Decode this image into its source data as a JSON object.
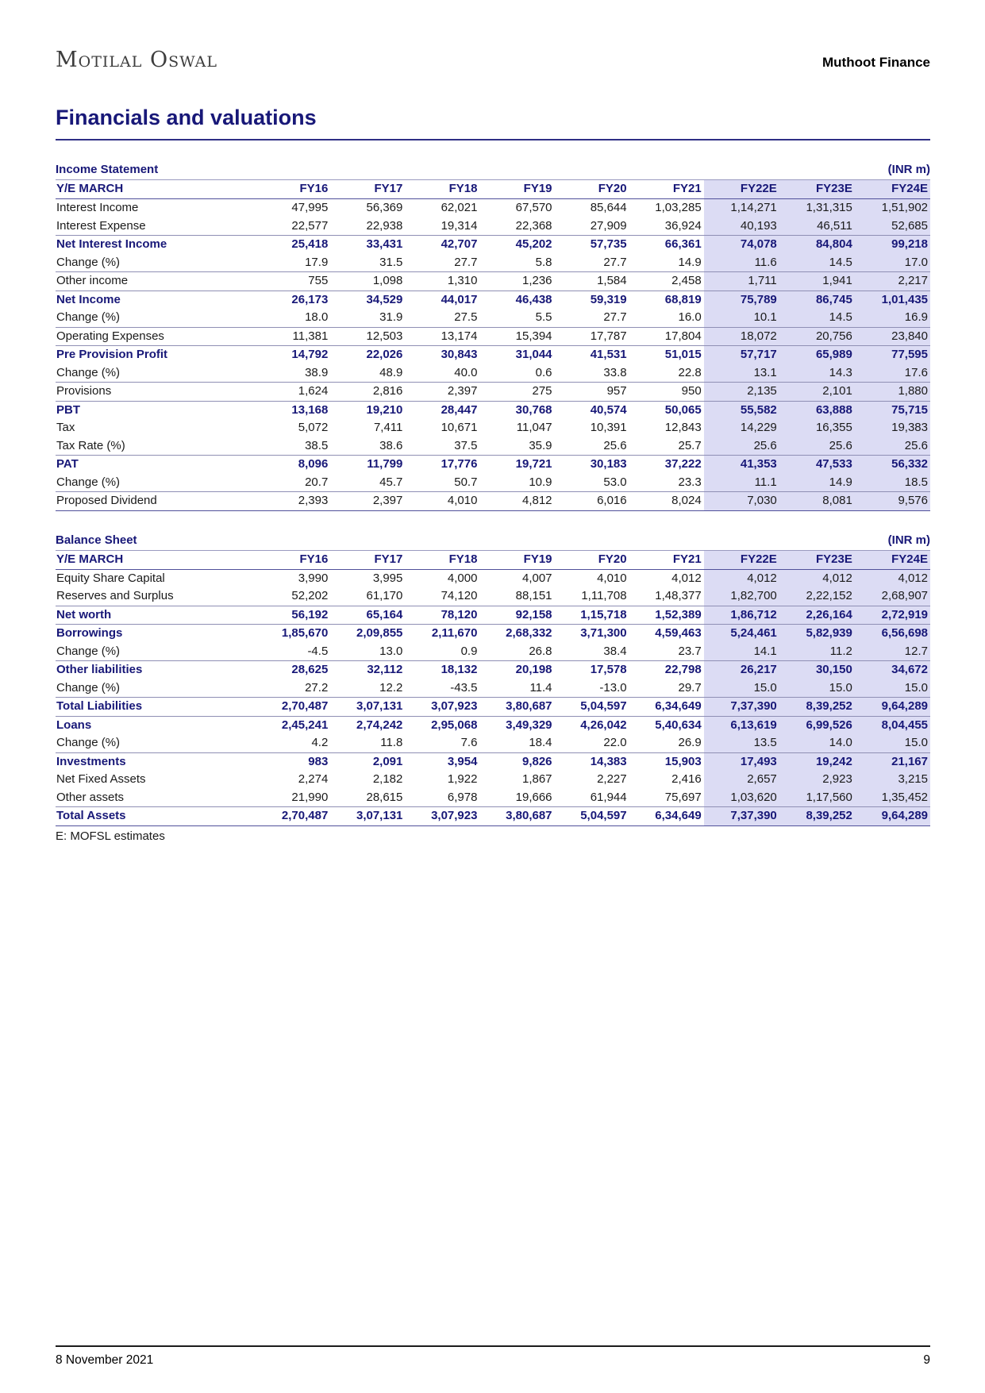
{
  "header": {
    "brand": "Motilal Oswal",
    "company": "Muthoot Finance"
  },
  "page_title": "Financials and valuations",
  "income_statement": {
    "title": "Income Statement",
    "unit": "(INR m)",
    "row_header": "Y/E MARCH",
    "columns": [
      "FY16",
      "FY17",
      "FY18",
      "FY19",
      "FY20",
      "FY21",
      "FY22E",
      "FY23E",
      "FY24E"
    ],
    "rows": [
      {
        "label": "Interest Income",
        "bold": false,
        "rule": false,
        "values": [
          "47,995",
          "56,369",
          "62,021",
          "67,570",
          "85,644",
          "1,03,285",
          "1,14,271",
          "1,31,315",
          "1,51,902"
        ]
      },
      {
        "label": "Interest Expense",
        "bold": false,
        "rule": true,
        "values": [
          "22,577",
          "22,938",
          "19,314",
          "22,368",
          "27,909",
          "36,924",
          "40,193",
          "46,511",
          "52,685"
        ]
      },
      {
        "label": "Net Interest Income",
        "bold": true,
        "rule": false,
        "values": [
          "25,418",
          "33,431",
          "42,707",
          "45,202",
          "57,735",
          "66,361",
          "74,078",
          "84,804",
          "99,218"
        ]
      },
      {
        "label": "Change (%)",
        "bold": false,
        "rule": true,
        "values": [
          "17.9",
          "31.5",
          "27.7",
          "5.8",
          "27.7",
          "14.9",
          "11.6",
          "14.5",
          "17.0"
        ]
      },
      {
        "label": "Other income",
        "bold": false,
        "rule": true,
        "values": [
          "755",
          "1,098",
          "1,310",
          "1,236",
          "1,584",
          "2,458",
          "1,711",
          "1,941",
          "2,217"
        ]
      },
      {
        "label": "Net Income",
        "bold": true,
        "rule": false,
        "values": [
          "26,173",
          "34,529",
          "44,017",
          "46,438",
          "59,319",
          "68,819",
          "75,789",
          "86,745",
          "1,01,435"
        ]
      },
      {
        "label": "Change (%)",
        "bold": false,
        "rule": true,
        "values": [
          "18.0",
          "31.9",
          "27.5",
          "5.5",
          "27.7",
          "16.0",
          "10.1",
          "14.5",
          "16.9"
        ]
      },
      {
        "label": "Operating Expenses",
        "bold": false,
        "rule": true,
        "values": [
          "11,381",
          "12,503",
          "13,174",
          "15,394",
          "17,787",
          "17,804",
          "18,072",
          "20,756",
          "23,840"
        ]
      },
      {
        "label": "Pre Provision Profit",
        "bold": true,
        "rule": false,
        "values": [
          "14,792",
          "22,026",
          "30,843",
          "31,044",
          "41,531",
          "51,015",
          "57,717",
          "65,989",
          "77,595"
        ]
      },
      {
        "label": "Change (%)",
        "bold": false,
        "rule": true,
        "values": [
          "38.9",
          "48.9",
          "40.0",
          "0.6",
          "33.8",
          "22.8",
          "13.1",
          "14.3",
          "17.6"
        ]
      },
      {
        "label": "Provisions",
        "bold": false,
        "rule": true,
        "values": [
          "1,624",
          "2,816",
          "2,397",
          "275",
          "957",
          "950",
          "2,135",
          "2,101",
          "1,880"
        ]
      },
      {
        "label": "PBT",
        "bold": true,
        "rule": false,
        "values": [
          "13,168",
          "19,210",
          "28,447",
          "30,768",
          "40,574",
          "50,065",
          "55,582",
          "63,888",
          "75,715"
        ]
      },
      {
        "label": "Tax",
        "bold": false,
        "rule": false,
        "values": [
          "5,072",
          "7,411",
          "10,671",
          "11,047",
          "10,391",
          "12,843",
          "14,229",
          "16,355",
          "19,383"
        ]
      },
      {
        "label": "Tax Rate (%)",
        "bold": false,
        "rule": true,
        "values": [
          "38.5",
          "38.6",
          "37.5",
          "35.9",
          "25.6",
          "25.7",
          "25.6",
          "25.6",
          "25.6"
        ]
      },
      {
        "label": "PAT",
        "bold": true,
        "rule": false,
        "values": [
          "8,096",
          "11,799",
          "17,776",
          "19,721",
          "30,183",
          "37,222",
          "41,353",
          "47,533",
          "56,332"
        ]
      },
      {
        "label": "Change (%)",
        "bold": false,
        "rule": true,
        "values": [
          "20.7",
          "45.7",
          "50.7",
          "10.9",
          "53.0",
          "23.3",
          "11.1",
          "14.9",
          "18.5"
        ]
      },
      {
        "label": "Proposed Dividend",
        "bold": false,
        "rule": true,
        "values": [
          "2,393",
          "2,397",
          "4,010",
          "4,812",
          "6,016",
          "8,024",
          "7,030",
          "8,081",
          "9,576"
        ]
      }
    ]
  },
  "balance_sheet": {
    "title": "Balance Sheet",
    "unit": "(INR m)",
    "row_header": "Y/E MARCH",
    "columns": [
      "FY16",
      "FY17",
      "FY18",
      "FY19",
      "FY20",
      "FY21",
      "FY22E",
      "FY23E",
      "FY24E"
    ],
    "rows": [
      {
        "label": "Equity Share Capital",
        "bold": false,
        "rule": false,
        "values": [
          "3,990",
          "3,995",
          "4,000",
          "4,007",
          "4,010",
          "4,012",
          "4,012",
          "4,012",
          "4,012"
        ]
      },
      {
        "label": "Reserves and Surplus",
        "bold": false,
        "rule": true,
        "values": [
          "52,202",
          "61,170",
          "74,120",
          "88,151",
          "1,11,708",
          "1,48,377",
          "1,82,700",
          "2,22,152",
          "2,68,907"
        ]
      },
      {
        "label": "Net worth",
        "bold": true,
        "rule": true,
        "values": [
          "56,192",
          "65,164",
          "78,120",
          "92,158",
          "1,15,718",
          "1,52,389",
          "1,86,712",
          "2,26,164",
          "2,72,919"
        ]
      },
      {
        "label": "Borrowings",
        "bold": true,
        "rule": false,
        "values": [
          "1,85,670",
          "2,09,855",
          "2,11,670",
          "2,68,332",
          "3,71,300",
          "4,59,463",
          "5,24,461",
          "5,82,939",
          "6,56,698"
        ]
      },
      {
        "label": "Change (%)",
        "bold": false,
        "rule": true,
        "values": [
          "-4.5",
          "13.0",
          "0.9",
          "26.8",
          "38.4",
          "23.7",
          "14.1",
          "11.2",
          "12.7"
        ]
      },
      {
        "label": "Other liabilities",
        "bold": true,
        "rule": false,
        "values": [
          "28,625",
          "32,112",
          "18,132",
          "20,198",
          "17,578",
          "22,798",
          "26,217",
          "30,150",
          "34,672"
        ]
      },
      {
        "label": "Change (%)",
        "bold": false,
        "rule": true,
        "values": [
          "27.2",
          "12.2",
          "-43.5",
          "11.4",
          "-13.0",
          "29.7",
          "15.0",
          "15.0",
          "15.0"
        ]
      },
      {
        "label": "Total Liabilities",
        "bold": true,
        "rule": true,
        "values": [
          "2,70,487",
          "3,07,131",
          "3,07,923",
          "3,80,687",
          "5,04,597",
          "6,34,649",
          "7,37,390",
          "8,39,252",
          "9,64,289"
        ]
      },
      {
        "label": "Loans",
        "bold": true,
        "rule": false,
        "values": [
          "2,45,241",
          "2,74,242",
          "2,95,068",
          "3,49,329",
          "4,26,042",
          "5,40,634",
          "6,13,619",
          "6,99,526",
          "8,04,455"
        ]
      },
      {
        "label": "Change (%)",
        "bold": false,
        "rule": true,
        "values": [
          "4.2",
          "11.8",
          "7.6",
          "18.4",
          "22.0",
          "26.9",
          "13.5",
          "14.0",
          "15.0"
        ]
      },
      {
        "label": "Investments",
        "bold": true,
        "rule": false,
        "values": [
          "983",
          "2,091",
          "3,954",
          "9,826",
          "14,383",
          "15,903",
          "17,493",
          "19,242",
          "21,167"
        ]
      },
      {
        "label": "Net Fixed Assets",
        "bold": false,
        "rule": false,
        "values": [
          "2,274",
          "2,182",
          "1,922",
          "1,867",
          "2,227",
          "2,416",
          "2,657",
          "2,923",
          "3,215"
        ]
      },
      {
        "label": "Other assets",
        "bold": false,
        "rule": true,
        "values": [
          "21,990",
          "28,615",
          "6,978",
          "19,666",
          "61,944",
          "75,697",
          "1,03,620",
          "1,17,560",
          "1,35,452"
        ]
      },
      {
        "label": "Total Assets",
        "bold": true,
        "rule": true,
        "values": [
          "2,70,487",
          "3,07,131",
          "3,07,923",
          "3,80,687",
          "5,04,597",
          "6,34,649",
          "7,37,390",
          "8,39,252",
          "9,64,289"
        ]
      }
    ]
  },
  "footnote": "E: MOFSL estimates",
  "footer": {
    "date": "8 November 2021",
    "page_number": "9"
  },
  "colors": {
    "accent_navy": "#181878",
    "estimate_column_bg": "#dcdcf4",
    "row_rule": "#8f8fb4"
  }
}
